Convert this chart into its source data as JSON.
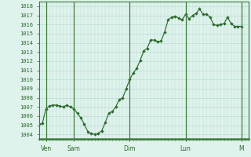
{
  "ylabel_values": [
    1004,
    1005,
    1006,
    1007,
    1008,
    1009,
    1010,
    1011,
    1012,
    1013,
    1014,
    1015,
    1016,
    1017,
    1018
  ],
  "ylim": [
    1003.5,
    1018.5
  ],
  "x_ticks_labels": [
    "Ven",
    "Sam",
    "Dim",
    "Lun",
    "M"
  ],
  "x_ticks_pos": [
    1,
    5,
    13,
    21,
    29
  ],
  "x_day_lines": [
    1,
    5,
    13,
    21,
    29
  ],
  "xlim": [
    0,
    30
  ],
  "data_x": [
    0.0,
    0.5,
    1.0,
    1.5,
    2.0,
    2.5,
    3.0,
    3.5,
    4.0,
    4.5,
    5.0,
    5.5,
    6.0,
    6.5,
    7.0,
    7.5,
    8.0,
    8.5,
    9.0,
    9.5,
    10.0,
    10.5,
    11.0,
    11.5,
    12.0,
    12.5,
    13.0,
    13.5,
    14.0,
    14.5,
    15.0,
    15.5,
    16.0,
    16.5,
    17.0,
    17.5,
    18.0,
    18.5,
    19.0,
    19.5,
    20.0,
    20.5,
    21.0,
    21.5,
    22.0,
    22.5,
    23.0,
    23.5,
    24.0,
    24.5,
    25.0,
    25.5,
    26.0,
    26.5,
    27.0,
    27.5,
    28.0,
    28.5,
    29.0
  ],
  "data_y": [
    1005.1,
    1005.2,
    1006.8,
    1007.1,
    1007.2,
    1007.2,
    1007.1,
    1007.0,
    1007.2,
    1007.0,
    1006.8,
    1006.3,
    1005.8,
    1005.1,
    1004.3,
    1004.1,
    1004.0,
    1004.1,
    1004.4,
    1005.3,
    1006.3,
    1006.5,
    1007.0,
    1007.8,
    1008.0,
    1009.0,
    1010.0,
    1010.7,
    1011.2,
    1012.1,
    1013.1,
    1013.4,
    1014.3,
    1014.3,
    1014.1,
    1014.2,
    1015.2,
    1016.5,
    1016.8,
    1016.9,
    1016.7,
    1016.5,
    1017.1,
    1016.6,
    1017.0,
    1017.2,
    1017.7,
    1017.1,
    1017.1,
    1016.8,
    1016.0,
    1015.9,
    1016.0,
    1016.1,
    1016.8,
    1016.1,
    1015.8,
    1015.8,
    1015.8
  ],
  "line_color": "#2d6a2d",
  "marker_color": "#2d6a2d",
  "bg_color": "#dff2ec",
  "grid_color": "#b8ddd3",
  "axis_label_color": "#2d6a2d",
  "tick_color": "#2d6a2d",
  "border_color": "#3a7a3a"
}
